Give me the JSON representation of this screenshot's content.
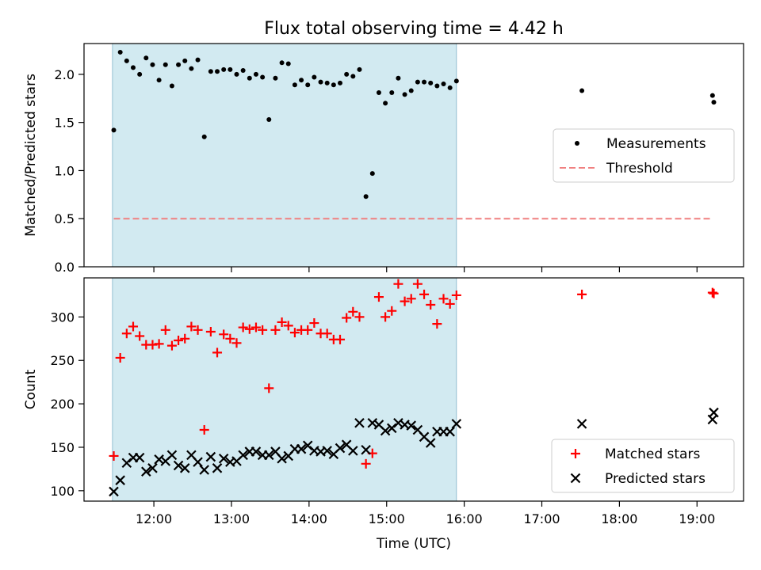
{
  "title": "Flux total observing time = 4.42 h",
  "chart_data": [
    {
      "type": "scatter",
      "ylabel": "Matched/Predicted stars",
      "xlabel": "",
      "xlim": [
        "11:06",
        "19:36"
      ],
      "ylim": [
        0,
        2.32
      ],
      "yticks": [
        "0.0",
        "0.5",
        "1.0",
        "1.5",
        "2.0"
      ],
      "grid": false,
      "legend_position": "center-right",
      "shaded_interval": {
        "start": "11:28",
        "end": "15:54",
        "color": "#add8e6"
      },
      "threshold": {
        "name": "Threshold",
        "value": 0.5,
        "x_start": "11:29",
        "x_end": "19:12",
        "color": "#f08080",
        "style": "dashed"
      },
      "series": [
        {
          "name": "Measurements",
          "marker": "dot",
          "color": "#000000",
          "x": [
            "11:29",
            "11:34",
            "11:39",
            "11:44",
            "11:49",
            "11:54",
            "11:59",
            "12:04",
            "12:09",
            "12:14",
            "12:19",
            "12:24",
            "12:29",
            "12:34",
            "12:39",
            "12:44",
            "12:49",
            "12:54",
            "12:59",
            "13:04",
            "13:09",
            "13:14",
            "13:19",
            "13:24",
            "13:29",
            "13:34",
            "13:39",
            "13:44",
            "13:49",
            "13:54",
            "13:59",
            "14:04",
            "14:09",
            "14:14",
            "14:19",
            "14:24",
            "14:29",
            "14:34",
            "14:39",
            "14:44",
            "14:49",
            "14:54",
            "14:59",
            "15:04",
            "15:09",
            "15:14",
            "15:19",
            "15:24",
            "15:29",
            "15:34",
            "15:39",
            "15:44",
            "15:49",
            "15:54",
            "17:31",
            "19:12",
            "19:13"
          ],
          "y": [
            1.42,
            2.23,
            2.14,
            2.07,
            2.0,
            2.17,
            2.1,
            1.94,
            2.1,
            1.88,
            2.1,
            2.14,
            2.06,
            2.15,
            1.35,
            2.03,
            2.03,
            2.05,
            2.05,
            2.0,
            2.04,
            1.96,
            2.0,
            1.97,
            1.53,
            1.96,
            2.12,
            2.11,
            1.89,
            1.94,
            1.89,
            1.97,
            1.92,
            1.91,
            1.89,
            1.91,
            2.0,
            1.98,
            2.05,
            0.73,
            0.97,
            1.81,
            1.7,
            1.81,
            1.96,
            1.79,
            1.83,
            1.92,
            1.92,
            1.91,
            1.88,
            1.9,
            1.86,
            1.93,
            1.83,
            1.78,
            1.71
          ]
        }
      ],
      "legend": [
        "Measurements",
        "Threshold"
      ]
    },
    {
      "type": "scatter",
      "ylabel": "Count",
      "xlabel": "Time (UTC)",
      "xlim": [
        "11:06",
        "19:36"
      ],
      "ylim": [
        88,
        345
      ],
      "xticks": [
        "12:00",
        "13:00",
        "14:00",
        "15:00",
        "16:00",
        "17:00",
        "18:00",
        "19:00"
      ],
      "yticks": [
        "100",
        "150",
        "200",
        "250",
        "300"
      ],
      "grid": false,
      "legend_position": "lower-right",
      "shaded_interval": {
        "start": "11:28",
        "end": "15:54",
        "color": "#add8e6"
      },
      "series": [
        {
          "name": "Matched stars",
          "marker": "plus",
          "color": "#ff0000",
          "x": [
            "11:29",
            "11:34",
            "11:39",
            "11:44",
            "11:49",
            "11:54",
            "11:59",
            "12:04",
            "12:09",
            "12:14",
            "12:19",
            "12:24",
            "12:29",
            "12:34",
            "12:39",
            "12:44",
            "12:49",
            "12:54",
            "12:59",
            "13:04",
            "13:09",
            "13:14",
            "13:19",
            "13:24",
            "13:29",
            "13:34",
            "13:39",
            "13:44",
            "13:49",
            "13:54",
            "13:59",
            "14:04",
            "14:09",
            "14:14",
            "14:19",
            "14:24",
            "14:29",
            "14:34",
            "14:39",
            "14:44",
            "14:49",
            "14:54",
            "14:59",
            "15:04",
            "15:09",
            "15:14",
            "15:19",
            "15:24",
            "15:29",
            "15:34",
            "15:39",
            "15:44",
            "15:49",
            "15:54",
            "17:31",
            "19:12",
            "19:13"
          ],
          "y": [
            140,
            253,
            281,
            289,
            278,
            268,
            268,
            269,
            285,
            267,
            273,
            275,
            289,
            285,
            170,
            283,
            259,
            280,
            275,
            270,
            288,
            286,
            288,
            285,
            218,
            285,
            294,
            290,
            282,
            285,
            285,
            293,
            281,
            281,
            274,
            274,
            299,
            306,
            300,
            131,
            143,
            323,
            300,
            307,
            338,
            318,
            321,
            338,
            326,
            314,
            292,
            321,
            315,
            325,
            326,
            328,
            327
          ]
        },
        {
          "name": "Predicted stars",
          "marker": "x",
          "color": "#000000",
          "x": [
            "11:29",
            "11:34",
            "11:39",
            "11:44",
            "11:49",
            "11:54",
            "11:59",
            "12:04",
            "12:09",
            "12:14",
            "12:19",
            "12:24",
            "12:29",
            "12:34",
            "12:39",
            "12:44",
            "12:49",
            "12:54",
            "12:59",
            "13:04",
            "13:09",
            "13:14",
            "13:19",
            "13:24",
            "13:29",
            "13:34",
            "13:39",
            "13:44",
            "13:49",
            "13:54",
            "13:59",
            "14:04",
            "14:09",
            "14:14",
            "14:19",
            "14:24",
            "14:29",
            "14:34",
            "14:39",
            "14:44",
            "14:49",
            "14:54",
            "14:59",
            "15:04",
            "15:09",
            "15:14",
            "15:19",
            "15:24",
            "15:29",
            "15:34",
            "15:39",
            "15:44",
            "15:49",
            "15:54",
            "17:31",
            "19:12",
            "19:13"
          ],
          "y": [
            99,
            112,
            132,
            138,
            138,
            122,
            126,
            136,
            134,
            141,
            129,
            126,
            141,
            133,
            124,
            139,
            126,
            137,
            133,
            134,
            141,
            145,
            145,
            141,
            141,
            145,
            137,
            140,
            148,
            148,
            152,
            146,
            145,
            146,
            142,
            149,
            153,
            146,
            178,
            147,
            178,
            176,
            169,
            172,
            178,
            176,
            175,
            170,
            162,
            155,
            168,
            168,
            168,
            177,
            177,
            182,
            190
          ]
        }
      ],
      "legend": [
        "Matched stars",
        "Predicted stars"
      ]
    }
  ]
}
